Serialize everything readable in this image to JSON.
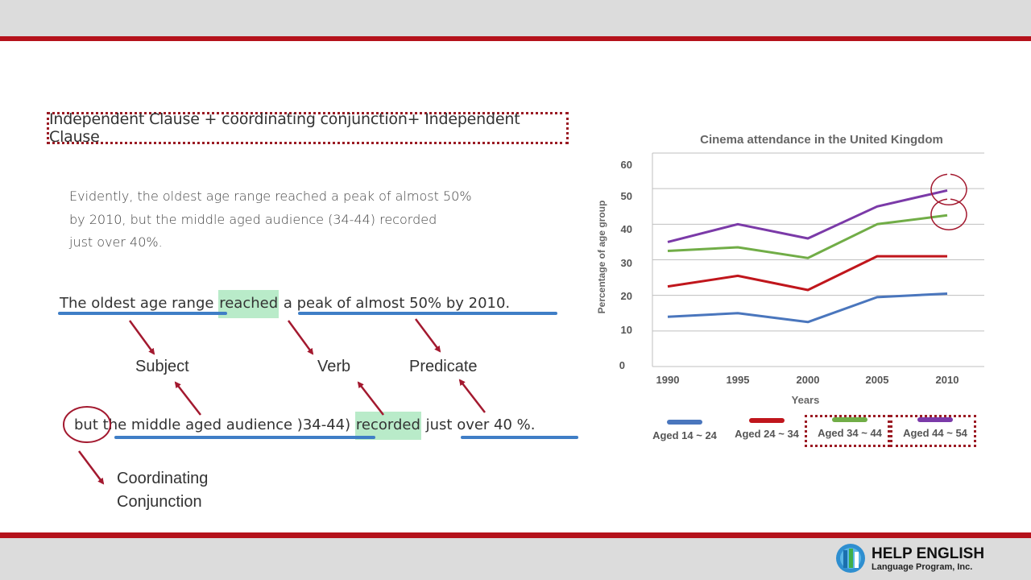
{
  "formula": "Independent Clause + coordinating conjunction+ Independent Clause",
  "example": {
    "line1": "Evidently, the oldest age range reached a peak of almost 50%",
    "line2": "by 2010, but the middle aged audience (34-44) recorded",
    "line3": "just over 40%."
  },
  "sentence1": {
    "subject": "The oldest age range",
    "verb": "reached",
    "predicate": "a peak of almost 50% by 2010."
  },
  "sentence2": {
    "conj": "but",
    "subject": "the middle aged audience )34-44)",
    "verb": "recorded",
    "predicate": "just over 40 %."
  },
  "labels": {
    "subject": "Subject",
    "verb": "Verb",
    "predicate": "Predicate",
    "conj_line1": "Coordinating",
    "conj_line2": "Conjunction"
  },
  "colors": {
    "accent": "#b5121b",
    "highlight": "#b9ebc9",
    "underline": "#3f7ec6"
  },
  "chart_data": {
    "type": "line",
    "title": "Cinema attendance in the United Kingdom",
    "xlabel": "Years",
    "ylabel": "Percentage of age group",
    "x": [
      1990,
      1995,
      2000,
      2005,
      2010
    ],
    "x_tick_labels": [
      "1990",
      "1995",
      "2000",
      "2005",
      "2010"
    ],
    "ylim": [
      0,
      60
    ],
    "y_tick_labels": [
      "0",
      "10",
      "20",
      "30",
      "40",
      "50",
      "60"
    ],
    "grid": true,
    "legend_position": "bottom",
    "series": [
      {
        "name": "Aged 14 ~ 24",
        "color": "#4a76bd",
        "values": [
          14,
          15,
          12.5,
          19.5,
          20.5
        ]
      },
      {
        "name": "Aged 24 ~ 34",
        "color": "#c0161c",
        "values": [
          22.5,
          25.5,
          21.5,
          31,
          31
        ]
      },
      {
        "name": "Aged 34 ~ 44",
        "color": "#71ad47",
        "values": [
          32.5,
          33.5,
          30.5,
          40,
          42.5
        ]
      },
      {
        "name": "Aged 44 ~ 54",
        "color": "#7b3aa8",
        "values": [
          35,
          40,
          36,
          45,
          49.5
        ]
      }
    ],
    "highlighted_series": [
      "Aged 34 ~ 44",
      "Aged 44 ~ 54"
    ]
  },
  "logo": {
    "name": "HELP ENGLISH",
    "subtitle": "Language Program, Inc."
  }
}
